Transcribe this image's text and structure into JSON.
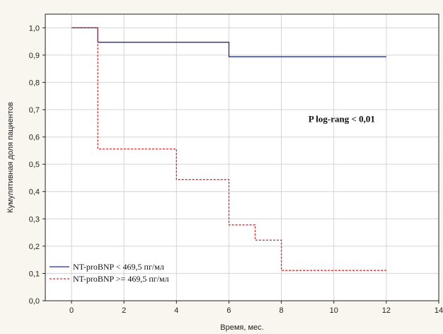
{
  "chart_data": {
    "type": "line",
    "step": true,
    "title": "",
    "xlabel": "Время, мес.",
    "ylabel": "Кумулятивная доля пациентов",
    "xlim": [
      -1,
      14
    ],
    "ylim": [
      0,
      1.05
    ],
    "x_ticks": [
      0,
      2,
      4,
      6,
      8,
      10,
      12,
      14
    ],
    "y_ticks": [
      0,
      0.1,
      0.2,
      0.3,
      0.4,
      0.5,
      0.6,
      0.7,
      0.8,
      0.9,
      1.0
    ],
    "x_tick_labels": [
      "0",
      "2",
      "4",
      "6",
      "8",
      "10",
      "12",
      "14"
    ],
    "y_tick_labels": [
      "0,0",
      "0,1",
      "0,2",
      "0,3",
      "0,4",
      "0,5",
      "0,6",
      "0,7",
      "0,8",
      "0,9",
      "1,0"
    ],
    "grid": true,
    "legend_position": "bottom-left",
    "series": [
      {
        "name": "NT-proBNP < 469,5 пг/мл",
        "color": "#1f2f8f",
        "dash": "solid",
        "x": [
          0,
          1,
          1,
          6,
          6,
          12
        ],
        "y": [
          1.0,
          1.0,
          0.947,
          0.947,
          0.894,
          0.894
        ]
      },
      {
        "name": "NT-proBNP >= 469,5 пг/мл",
        "color": "#e0262b",
        "dash": "dashed",
        "x": [
          0,
          1,
          1,
          4,
          4,
          6,
          6,
          7,
          7,
          8,
          8,
          12
        ],
        "y": [
          1.0,
          1.0,
          0.556,
          0.556,
          0.444,
          0.444,
          0.278,
          0.278,
          0.222,
          0.222,
          0.111,
          0.111
        ]
      }
    ],
    "annotations": [
      {
        "text": "P log-rang < 0,01",
        "x": 10.3,
        "y": 0.655
      }
    ]
  }
}
